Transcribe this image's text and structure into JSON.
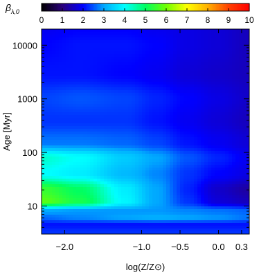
{
  "chart_data": {
    "type": "heatmap",
    "colorbar": {
      "label_symbol": "β",
      "label_subscript": "λ,0",
      "ticks": [
        "0",
        "1",
        "2",
        "3",
        "4",
        "5",
        "6",
        "7",
        "8",
        "9",
        "10"
      ],
      "range": [
        0,
        10
      ],
      "colormap": [
        "#000000",
        "#2a007a",
        "#0000ff",
        "#00a8ff",
        "#00ffff",
        "#00ff60",
        "#70ff00",
        "#ffff00",
        "#ffb000",
        "#ff4000",
        "#ff0000"
      ]
    },
    "x": {
      "label": "log(Z/Z⊙)",
      "tick_labels": [
        "−2.0",
        "−1.0",
        "−0.5",
        "0.0",
        "0.3"
      ],
      "tick_values": [
        -2.0,
        -1.0,
        -0.5,
        0.0,
        0.3
      ],
      "range": [
        -2.3,
        0.4
      ]
    },
    "y": {
      "label": "Age [Myr]",
      "scale": "log",
      "tick_labels": [
        "10",
        "100",
        "1000",
        "10000"
      ],
      "tick_values": [
        10,
        100,
        1000,
        10000
      ],
      "range": [
        3,
        20000
      ]
    },
    "z_rows": [
      {
        "age": 20000,
        "values": [
          1.9,
          2.0,
          2.0,
          1.9,
          1.8,
          1.7,
          1.5
        ]
      },
      {
        "age": 10000,
        "values": [
          2.0,
          2.1,
          2.1,
          2.0,
          1.8,
          1.7,
          1.5
        ]
      },
      {
        "age": 3000,
        "values": [
          2.1,
          2.1,
          2.0,
          1.9,
          1.7,
          1.6,
          1.5
        ]
      },
      {
        "age": 1000,
        "values": [
          2.4,
          2.5,
          2.4,
          2.2,
          2.0,
          1.8,
          1.6
        ]
      },
      {
        "age": 400,
        "values": [
          2.3,
          2.3,
          2.3,
          2.1,
          1.9,
          1.7,
          1.5
        ]
      },
      {
        "age": 150,
        "values": [
          2.7,
          2.7,
          2.6,
          2.4,
          2.1,
          1.9,
          1.7
        ]
      },
      {
        "age": 80,
        "values": [
          4.3,
          4.0,
          3.4,
          3.0,
          2.5,
          2.2,
          1.9
        ]
      },
      {
        "age": 40,
        "values": [
          4.0,
          3.8,
          3.2,
          2.8,
          2.3,
          2.0,
          1.8
        ]
      },
      {
        "age": 20,
        "values": [
          5.5,
          5.0,
          3.8,
          3.0,
          2.2,
          1.6,
          1.3
        ]
      },
      {
        "age": 12,
        "values": [
          5.8,
          5.2,
          3.9,
          3.0,
          2.3,
          1.7,
          1.5
        ]
      },
      {
        "age": 8,
        "values": [
          3.0,
          2.9,
          2.9,
          2.9,
          2.8,
          2.7,
          2.6
        ]
      },
      {
        "age": 6,
        "values": [
          2.6,
          2.8,
          3.0,
          3.1,
          3.0,
          2.9,
          2.7
        ]
      },
      {
        "age": 4.5,
        "values": [
          2.1,
          2.1,
          2.1,
          2.1,
          2.1,
          2.1,
          2.1
        ]
      },
      {
        "age": 3.2,
        "values": [
          2.3,
          2.3,
          2.3,
          2.3,
          2.3,
          2.3,
          2.3
        ]
      }
    ],
    "z_columns": [
      -2.3,
      -1.8,
      -1.2,
      -0.8,
      -0.4,
      0.0,
      0.4
    ]
  }
}
